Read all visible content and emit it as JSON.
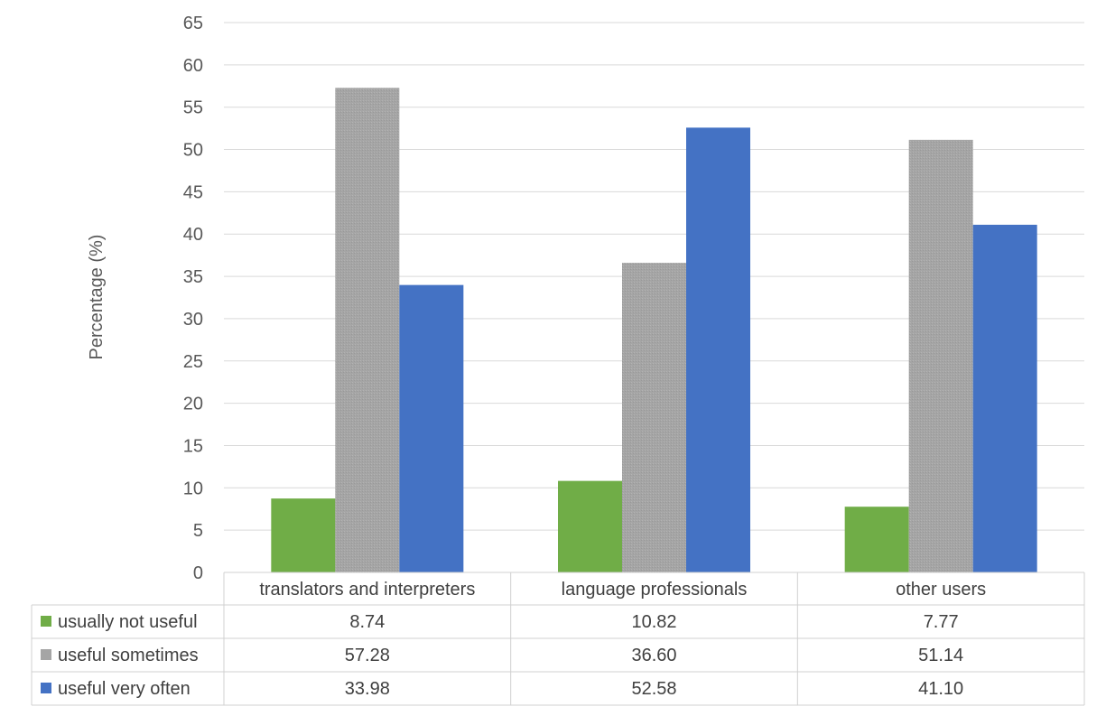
{
  "chart_data": {
    "type": "bar",
    "title": "",
    "xlabel": "",
    "ylabel": "Percentage (%)",
    "ylim": [
      0,
      65
    ],
    "ytick_step": 5,
    "grid": true,
    "legend": "data-table-left",
    "categories": [
      "translators and interpreters",
      "language professionals",
      "other users"
    ],
    "series": [
      {
        "name": "usually not useful",
        "color": "#70ad47",
        "values": [
          8.74,
          10.82,
          7.77
        ],
        "labels": [
          "8.74",
          "10.82",
          "7.77"
        ]
      },
      {
        "name": "useful sometimes",
        "color": "#a5a5a5",
        "values": [
          57.28,
          36.6,
          51.14
        ],
        "labels": [
          "57.28",
          "36.60",
          "51.14"
        ]
      },
      {
        "name": "useful very often",
        "color": "#4472c4",
        "values": [
          33.98,
          52.58,
          41.1
        ],
        "labels": [
          "33.98",
          "52.58",
          "41.10"
        ]
      }
    ]
  }
}
